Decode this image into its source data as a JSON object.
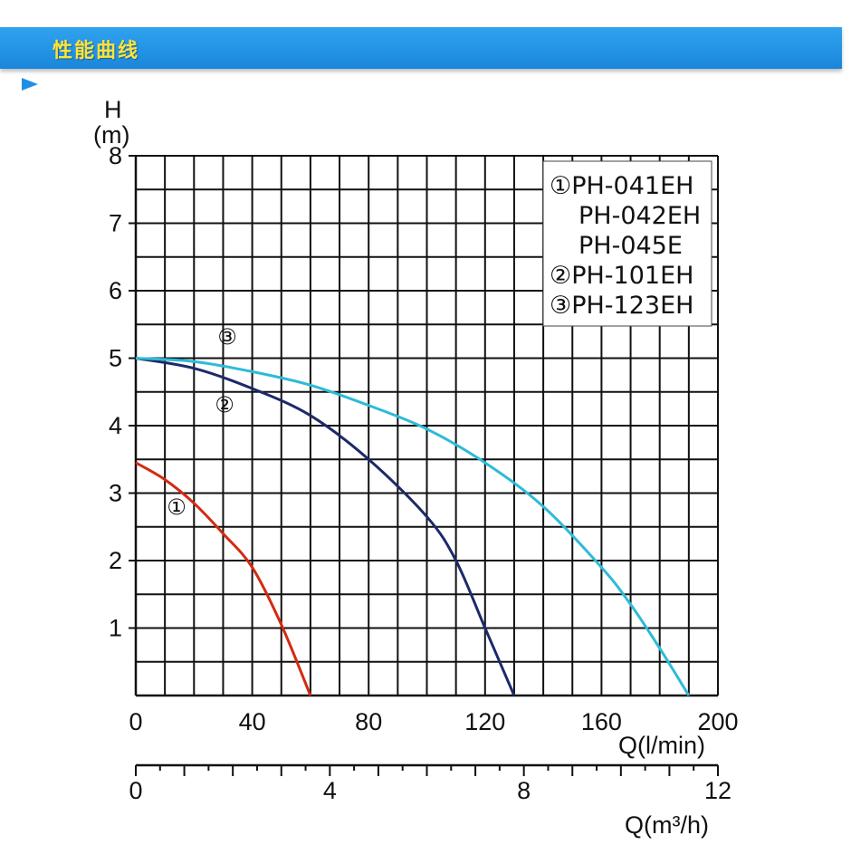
{
  "header": {
    "title": "性能曲线"
  },
  "chart_data": {
    "type": "line",
    "ylabel_top": "H",
    "ylabel_unit": "(m)",
    "xlabel": "Q(l/min)",
    "xlabel2": "Q(m³/h)",
    "ylim": [
      0,
      8
    ],
    "xlim": [
      0,
      200
    ],
    "yticks": [
      "1",
      "2",
      "3",
      "4",
      "5",
      "6",
      "7",
      "8"
    ],
    "xticks": [
      "0",
      "40",
      "80",
      "120",
      "160",
      "200"
    ],
    "x2lim": [
      0,
      12
    ],
    "x2ticks": [
      "0",
      "4",
      "8",
      "12"
    ],
    "grid": true,
    "legend": {
      "position": "top-right",
      "lines": [
        "①PH-041EH",
        "PH-042EH",
        "PH-045E",
        "②PH-101EH",
        "③PH-123EH"
      ]
    },
    "series": [
      {
        "name": "①",
        "color": "#d42a10",
        "x": [
          0,
          10,
          20,
          30,
          40,
          50,
          60
        ],
        "y": [
          3.45,
          3.2,
          2.85,
          2.4,
          1.9,
          1.05,
          0
        ]
      },
      {
        "name": "②",
        "color": "#1c2a6a",
        "x": [
          0,
          20,
          40,
          60,
          80,
          100,
          110,
          120,
          130
        ],
        "y": [
          5.0,
          4.85,
          4.55,
          4.15,
          3.5,
          2.65,
          2.0,
          1.0,
          0
        ]
      },
      {
        "name": "③",
        "color": "#2dbbd8",
        "x": [
          0,
          20,
          40,
          60,
          80,
          100,
          120,
          140,
          160,
          170,
          180,
          190
        ],
        "y": [
          5.0,
          4.95,
          4.8,
          4.6,
          4.3,
          3.95,
          3.45,
          2.8,
          1.9,
          1.35,
          0.7,
          0
        ]
      }
    ]
  }
}
